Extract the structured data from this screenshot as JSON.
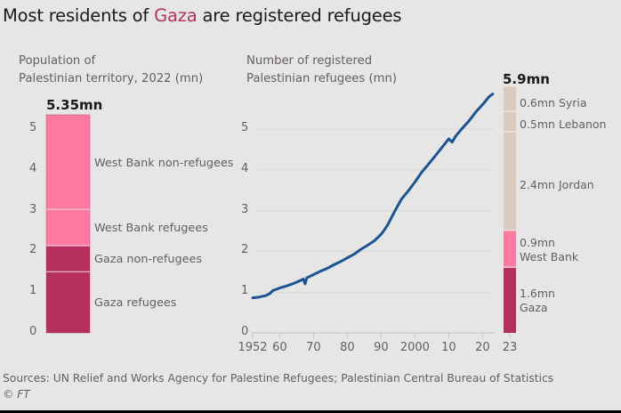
{
  "title": {
    "before": "Most residents of ",
    "highlight": "Gaza",
    "after": " are registered refugees",
    "highlight_color": "#b5305f"
  },
  "colors": {
    "background": "#e6e6e6",
    "gaza": "#b5305f",
    "west_bank": "#ff7aa1",
    "abroad": "#d9cbc0",
    "line": "#1a5494",
    "grid": "#dcd8d4"
  },
  "chart_data": [
    {
      "type": "bar",
      "stacked": true,
      "subtitle": [
        "Population of",
        "Palestinian territory, 2022 (mn)"
      ],
      "total_label": "5.35mn",
      "ylim": [
        0,
        5.35
      ],
      "yticks": [
        "0",
        "1",
        "2",
        "3",
        "4",
        "5"
      ],
      "grid": true,
      "segments": [
        {
          "name": "Gaza refugees",
          "value": 1.5,
          "color_key": "gaza"
        },
        {
          "name": "Gaza non-refugees",
          "value": 0.64,
          "color_key": "gaza"
        },
        {
          "name": "West Bank refugees",
          "value": 0.89,
          "color_key": "west_bank"
        },
        {
          "name": "West Bank non-refugees",
          "value": 2.32,
          "color_key": "west_bank"
        }
      ]
    },
    {
      "type": "line",
      "subtitle": [
        "Number of registered",
        "Palestinian refugees (mn)"
      ],
      "xlabel": "",
      "ylabel": "",
      "xlim": [
        1952,
        2023
      ],
      "ylim": [
        0,
        5.9
      ],
      "grid": true,
      "xticks": [
        {
          "value": 1952,
          "label": "1952"
        },
        {
          "value": 1960,
          "label": "60"
        },
        {
          "value": 1970,
          "label": "70"
        },
        {
          "value": 1980,
          "label": "80"
        },
        {
          "value": 1990,
          "label": "90"
        },
        {
          "value": 2000,
          "label": "2000"
        },
        {
          "value": 2010,
          "label": "10"
        },
        {
          "value": 2020,
          "label": "20"
        }
      ],
      "yticks": [
        "0",
        "1",
        "2",
        "3",
        "4",
        "5"
      ],
      "series": [
        {
          "name": "Registered Palestinian refugees",
          "x": [
            1952,
            1954,
            1956,
            1957,
            1958,
            1960,
            1962,
            1964,
            1966,
            1967,
            1967.5,
            1968,
            1970,
            1972,
            1974,
            1976,
            1978,
            1980,
            1982,
            1984,
            1986,
            1988,
            1990,
            1991,
            1992,
            1993,
            1994,
            1995,
            1996,
            1997,
            1998,
            2000,
            2002,
            2004,
            2006,
            2008,
            2010,
            2011,
            2012,
            2014,
            2016,
            2018,
            2020,
            2021,
            2022,
            2023
          ],
          "values": [
            0.86,
            0.88,
            0.92,
            0.96,
            1.04,
            1.1,
            1.15,
            1.21,
            1.28,
            1.32,
            1.2,
            1.35,
            1.43,
            1.51,
            1.58,
            1.67,
            1.75,
            1.84,
            1.93,
            2.05,
            2.15,
            2.26,
            2.42,
            2.53,
            2.66,
            2.82,
            2.98,
            3.13,
            3.28,
            3.38,
            3.48,
            3.7,
            3.94,
            4.14,
            4.34,
            4.55,
            4.76,
            4.68,
            4.82,
            5.02,
            5.2,
            5.42,
            5.6,
            5.7,
            5.8,
            5.86
          ]
        }
      ]
    },
    {
      "type": "bar",
      "stacked": true,
      "category": "23",
      "total_label": "5.9mn",
      "segments": [
        {
          "name": "Gaza",
          "value": 1.6,
          "label": [
            "1.6mn",
            "Gaza"
          ],
          "color_key": "gaza"
        },
        {
          "name": "West Bank",
          "value": 0.9,
          "label": [
            "0.9mn",
            "West Bank"
          ],
          "color_key": "west_bank"
        },
        {
          "name": "Jordan",
          "value": 2.4,
          "label": [
            "2.4mn Jordan"
          ],
          "color_key": "abroad"
        },
        {
          "name": "Lebanon",
          "value": 0.5,
          "label": [
            "0.5mn Lebanon"
          ],
          "color_key": "abroad"
        },
        {
          "name": "Syria",
          "value": 0.6,
          "label": [
            "0.6mn Syria"
          ],
          "color_key": "abroad"
        }
      ]
    }
  ],
  "footer": {
    "source": "Sources: UN Relief and Works Agency for Palestine Refugees; Palestinian Central Bureau of Statistics",
    "copyright": "© FT"
  }
}
